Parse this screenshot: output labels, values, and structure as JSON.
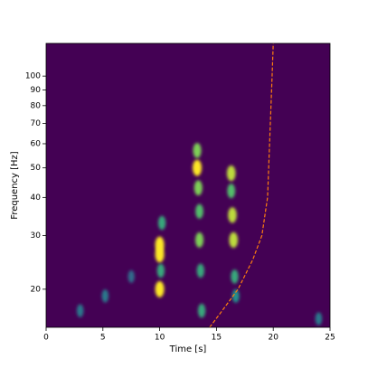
{
  "chart_data": {
    "type": "spectrogram",
    "x_label": "Time [s]",
    "y_label": "Frequency [Hz]",
    "xlim": [
      0,
      25
    ],
    "ylim": [
      15,
      128
    ],
    "y_log": true,
    "xticks": [
      0,
      5,
      10,
      15,
      20,
      25
    ],
    "yticks": [
      20,
      30,
      40,
      50,
      60,
      70,
      80,
      90,
      100
    ],
    "background_color": "#440154",
    "features": {
      "x": [
        10.0,
        10.0,
        10.0,
        10.1,
        10.2,
        13.3,
        13.3,
        13.4,
        13.5,
        13.5,
        13.6,
        13.7,
        16.3,
        16.3,
        16.4,
        16.5,
        16.6,
        16.7,
        5.2,
        3.0,
        24.0,
        7.5
      ],
      "y": [
        28,
        26,
        20,
        23,
        33,
        50,
        57,
        43,
        36,
        29,
        23,
        17,
        48,
        42,
        35,
        29,
        22,
        19,
        19,
        17,
        16,
        22
      ],
      "intensity": [
        1.0,
        1.0,
        1.0,
        0.6,
        0.6,
        1.0,
        0.8,
        0.8,
        0.7,
        0.8,
        0.6,
        0.6,
        0.9,
        0.7,
        0.9,
        0.9,
        0.6,
        0.5,
        0.4,
        0.4,
        0.4,
        0.35
      ]
    },
    "series": [
      {
        "color": "#ff7f0e",
        "style": "dashed",
        "x": [
          14.4,
          15.5,
          16.9,
          18.2,
          19.0,
          19.5,
          19.9,
          20.0
        ],
        "values": [
          15,
          17,
          20,
          25,
          30,
          40,
          100,
          128
        ]
      }
    ]
  }
}
